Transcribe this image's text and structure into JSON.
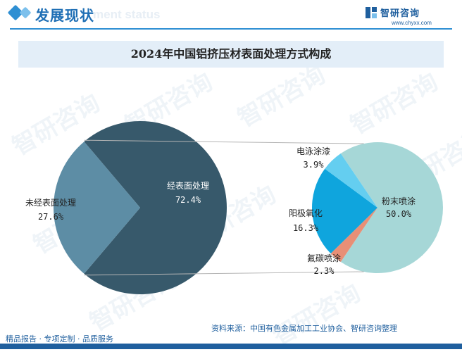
{
  "header": {
    "title": "发展现状",
    "subtitle": "ment status",
    "logo_text": "智研咨询",
    "logo_url": "www.chyxx.com"
  },
  "watermark": "智研咨询",
  "chart_data": {
    "type": "pie",
    "title": "2024年中国铝挤压材表面处理方式构成",
    "main_pie": {
      "slices": [
        {
          "label": "经表面处理",
          "value": 72.4,
          "value_label": "72.4%",
          "color": "#37596b"
        },
        {
          "label": "未经表面处理",
          "value": 27.6,
          "value_label": "27.6%",
          "color": "#5d8da5"
        }
      ]
    },
    "breakdown_pie": {
      "of": "经表面处理",
      "slices": [
        {
          "label": "粉末喷涂",
          "value": 50.0,
          "value_label": "50.0%",
          "color": "#a6d7d7"
        },
        {
          "label": "氟碳喷涂",
          "value": 2.3,
          "value_label": "2.3%",
          "color": "#e88f76"
        },
        {
          "label": "阳极氧化",
          "value": 16.3,
          "value_label": "16.3%",
          "color": "#0fa5dd"
        },
        {
          "label": "电泳涂漆",
          "value": 3.9,
          "value_label": "3.9%",
          "color": "#64cef0"
        }
      ]
    }
  },
  "footer": {
    "source": "资料来源：中国有色金属加工工业协会、智研咨询整理",
    "tagline": "精品报告 · 专项定制 · 品质服务"
  }
}
